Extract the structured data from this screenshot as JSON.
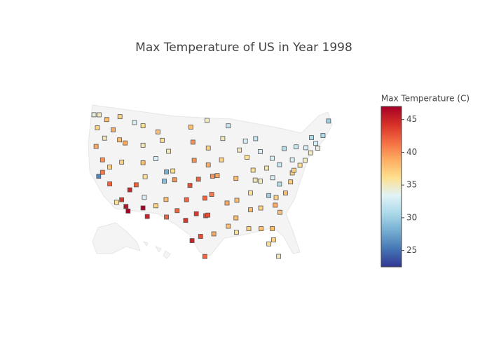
{
  "chart_data": {
    "type": "scattergeo",
    "title": "Max Temperature of US in Year 1998",
    "colorbar_title": "Max Temperature (C)",
    "colorscale": [
      "#313695",
      "#4575b4",
      "#74add1",
      "#abd9e9",
      "#e0f3f8",
      "#fee090",
      "#fdae61",
      "#f46d43",
      "#d73027",
      "#a50026"
    ],
    "zlim": [
      22.5,
      47
    ],
    "zticks": [
      25,
      30,
      35,
      40,
      45
    ],
    "lon": [
      -123.5,
      -122.3,
      -120.5,
      -117.4,
      -122.7,
      -119,
      -121,
      -117.5,
      -123,
      -122.4,
      -121.5,
      -119.8,
      -118.2,
      -117,
      -116,
      -115.5,
      -121.5,
      -119.8,
      -115.1,
      -117,
      -112,
      -111.5,
      -113.6,
      -116.2,
      -112,
      -112,
      -108.5,
      -114,
      -106,
      -109,
      -107.5,
      -105,
      -106.5,
      -107,
      -104.6,
      -112,
      -111,
      -111.7,
      -109,
      -106.6,
      -106.5,
      -104,
      -100.8,
      -97,
      -100.3,
      -96.7,
      -100,
      -96.7,
      -99,
      -95.7,
      -101,
      -97.5,
      -95.9,
      -101.8,
      -99.5,
      -97.3,
      -96.8,
      -102,
      -98.5,
      -95.4,
      -97.5,
      -100.5,
      -93.3,
      -92,
      -89.4,
      -88,
      -93.6,
      -90.2,
      -94.6,
      -87.6,
      -86.2,
      -84.5,
      -85.6,
      -83,
      -81.7,
      -92.3,
      -90,
      -90.2,
      -92,
      -90.1,
      -86.8,
      -84.4,
      -86.8,
      -84.5,
      -85.7,
      -80,
      -81.6,
      -80,
      -82.5,
      -78.6,
      -80.8,
      -81,
      -79.9,
      -77.4,
      -77,
      -76.6,
      -75.2,
      -77,
      -74,
      -73.8,
      -76.1,
      -78.9,
      -72.7,
      -71,
      -72.5,
      -71.5,
      -69.8,
      -68.5,
      -81.7,
      -84.3,
      -81.4,
      -82.5,
      -80.2,
      -87.2
    ],
    "lat": [
      47.5,
      47.6,
      47,
      47.7,
      45.5,
      45.5,
      44,
      44,
      42.5,
      37.8,
      38.5,
      36.8,
      34,
      34.5,
      33.5,
      32.8,
      40.5,
      39.5,
      36.2,
      40.5,
      40.7,
      38.5,
      37.1,
      43.6,
      43.5,
      46.6,
      45.8,
      47,
      42.8,
      41.5,
      44.5,
      39.7,
      39.5,
      38,
      38.3,
      33.5,
      32.2,
      35.2,
      34,
      35.1,
      32.3,
      33.4,
      46.8,
      47.9,
      44.4,
      43.5,
      41.5,
      40.8,
      38.5,
      39,
      37.5,
      35.5,
      36.1,
      35.2,
      33,
      32.7,
      32.8,
      31.9,
      29.4,
      29.8,
      26.2,
      28.7,
      45,
      47,
      43.1,
      44.5,
      41.6,
      38.6,
      39.1,
      41.9,
      39.8,
      42.7,
      44.8,
      40,
      41.5,
      34.7,
      35.1,
      32.3,
      31,
      30,
      33.5,
      33.7,
      36.2,
      38,
      38.2,
      40.4,
      38.4,
      37.3,
      35.6,
      35.8,
      35.2,
      34,
      32.8,
      37.5,
      38.9,
      39.3,
      40,
      41,
      40.7,
      42.7,
      43,
      42.9,
      41.8,
      42.4,
      44.2,
      43.2,
      44.3,
      46.5,
      30.3,
      30.4,
      28.5,
      27.9,
      25.8,
      30.5
    ],
    "values": [
      34,
      35,
      38,
      37,
      37,
      39,
      35,
      38,
      39,
      26,
      41,
      42,
      36,
      44,
      46,
      47,
      40,
      37,
      45,
      37,
      38,
      36,
      42,
      39,
      35,
      36,
      38,
      33,
      35,
      33,
      36,
      36,
      28,
      29,
      40,
      47,
      45,
      33,
      37,
      38,
      42,
      42,
      38,
      35,
      40,
      37,
      40,
      39,
      42,
      40,
      43,
      42,
      41,
      42,
      44,
      43,
      43,
      44,
      43,
      39,
      42,
      45,
      35,
      32,
      35,
      33,
      37,
      38,
      39,
      36,
      36,
      33,
      32,
      35,
      33,
      39,
      38,
      38,
      38,
      36,
      38,
      37,
      36,
      35,
      35,
      32,
      33,
      31,
      30,
      38,
      37,
      39,
      38,
      37,
      37,
      37,
      36,
      33,
      35,
      33,
      32,
      31,
      35,
      34,
      31,
      33,
      31,
      30,
      38,
      38,
      37,
      36,
      35,
      37
    ]
  }
}
